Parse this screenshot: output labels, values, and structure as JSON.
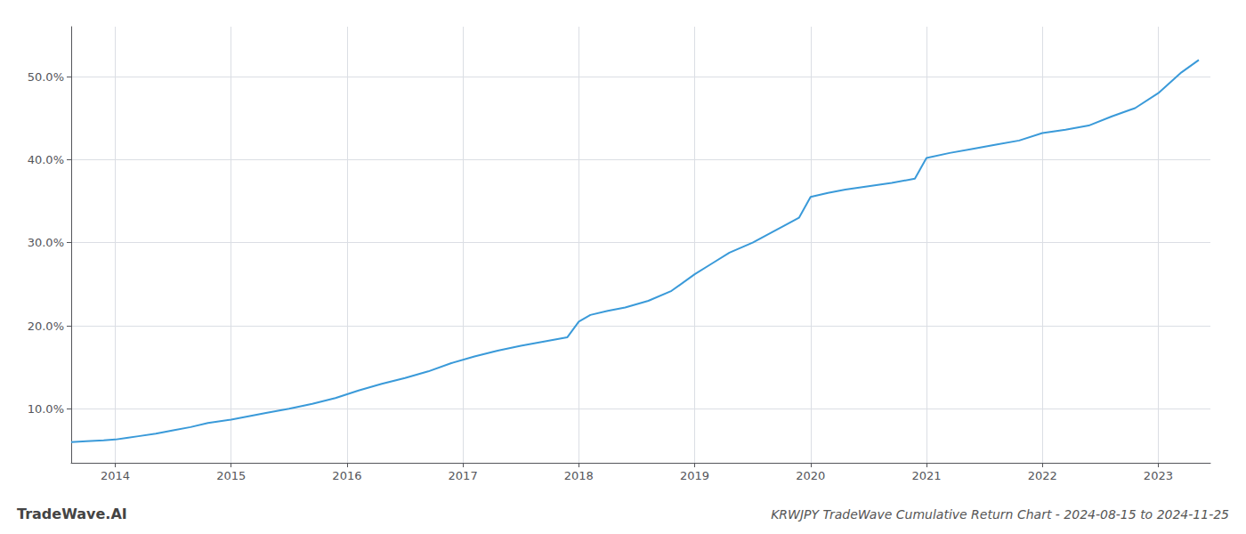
{
  "chart_data": {
    "type": "line",
    "title": "KRWJPY TradeWave Cumulative Return Chart - 2024-08-15 to 2024-11-25",
    "annotations": [
      "TradeWave.AI"
    ],
    "x": [
      2013.62,
      2013.75,
      2013.9,
      2014.0,
      2014.1,
      2014.2,
      2014.35,
      2014.5,
      2014.65,
      2014.8,
      2015.0,
      2015.15,
      2015.3,
      2015.5,
      2015.7,
      2015.9,
      2016.1,
      2016.3,
      2016.5,
      2016.7,
      2016.9,
      2017.1,
      2017.3,
      2017.5,
      2017.7,
      2017.9,
      2018.0,
      2018.1,
      2018.25,
      2018.4,
      2018.6,
      2018.8,
      2019.0,
      2019.15,
      2019.3,
      2019.5,
      2019.7,
      2019.9,
      2020.0,
      2020.15,
      2020.3,
      2020.5,
      2020.7,
      2020.9,
      2021.0,
      2021.2,
      2021.4,
      2021.6,
      2021.8,
      2022.0,
      2022.2,
      2022.4,
      2022.6,
      2022.8,
      2023.0,
      2023.2,
      2023.35
    ],
    "values": [
      6.0,
      6.1,
      6.2,
      6.3,
      6.5,
      6.7,
      7.0,
      7.4,
      7.8,
      8.3,
      8.7,
      9.1,
      9.5,
      10.0,
      10.6,
      11.3,
      12.2,
      13.0,
      13.7,
      14.5,
      15.5,
      16.3,
      17.0,
      17.6,
      18.1,
      18.6,
      20.5,
      21.3,
      21.8,
      22.2,
      23.0,
      24.2,
      26.2,
      27.5,
      28.8,
      30.0,
      31.5,
      33.0,
      35.5,
      36.0,
      36.4,
      36.8,
      37.2,
      37.7,
      40.2,
      40.8,
      41.3,
      41.8,
      42.3,
      43.2,
      43.6,
      44.1,
      45.2,
      46.2,
      48.0,
      50.5,
      52.0
    ],
    "color": "#3a9ad9",
    "xlim": [
      2013.62,
      2023.45
    ],
    "xticks": [
      2014,
      2015,
      2016,
      2017,
      2018,
      2019,
      2020,
      2021,
      2022,
      2023
    ],
    "ylim": [
      3.5,
      56.0
    ],
    "yticks": [
      {
        "value": 10.0,
        "label": "10.0%"
      },
      {
        "value": 20.0,
        "label": "20.0%"
      },
      {
        "value": 30.0,
        "label": "30.0%"
      },
      {
        "value": 40.0,
        "label": "40.0%"
      },
      {
        "value": 50.0,
        "label": "50.0%"
      }
    ],
    "grid": true
  }
}
